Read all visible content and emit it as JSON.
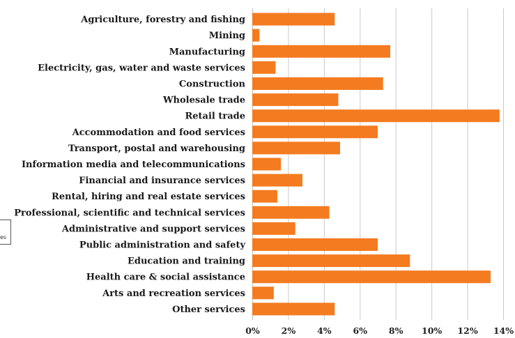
{
  "chart_data": {
    "type": "bar",
    "orientation": "horizontal",
    "categories": [
      "Agriculture, forestry and fishing",
      "Mining",
      "Manufacturing",
      "Electricity, gas, water and waste services",
      "Construction",
      "Wholesale trade",
      "Retail trade",
      "Accommodation and food services",
      "Transport, postal and warehousing",
      "Information media and telecommunications",
      "Financial and insurance services",
      "Rental, hiring and real estate services",
      "Professional, scientific and technical services",
      "Administrative and support services",
      "Public administration and safety",
      "Education and training",
      "Health care & social assistance",
      "Arts and recreation services",
      "Other services"
    ],
    "values": [
      4.6,
      0.4,
      7.7,
      1.3,
      7.3,
      4.8,
      13.8,
      7.0,
      4.9,
      1.6,
      2.8,
      1.4,
      4.3,
      2.4,
      7.0,
      8.8,
      13.3,
      1.2,
      4.6
    ],
    "xlim": [
      0,
      14
    ],
    "xticks": [
      "0%",
      "2%",
      "4%",
      "6%",
      "8%",
      "10%",
      "12%",
      "14%"
    ],
    "grid": true,
    "bar_color": "#f47b20",
    "legend_fragment": "es"
  }
}
